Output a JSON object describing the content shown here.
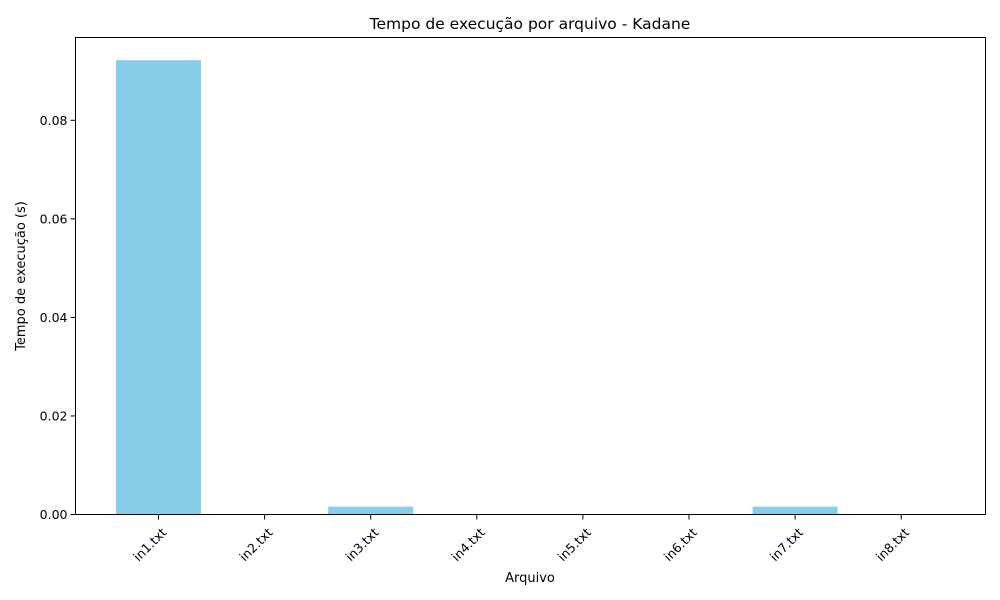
{
  "chart_data": {
    "type": "bar",
    "title": "Tempo de execução por arquivo - Kadane",
    "xlabel": "Arquivo",
    "ylabel": "Tempo de execução (s)",
    "categories": [
      "in1.txt",
      "in2.txt",
      "in3.txt",
      "in4.txt",
      "in5.txt",
      "in6.txt",
      "in7.txt",
      "in8.txt"
    ],
    "values": [
      0.0922,
      1e-05,
      0.0016,
      1e-05,
      1e-05,
      1e-05,
      0.0016,
      1e-05
    ],
    "ylim": [
      0,
      0.0968
    ],
    "yticks": [
      0.0,
      0.02,
      0.04,
      0.06,
      0.08
    ],
    "ytick_labels": [
      "0.00",
      "0.02",
      "0.04",
      "0.06",
      "0.08"
    ],
    "bar_color": "#87ceeb",
    "grid": false,
    "xtick_rotation": 45
  }
}
